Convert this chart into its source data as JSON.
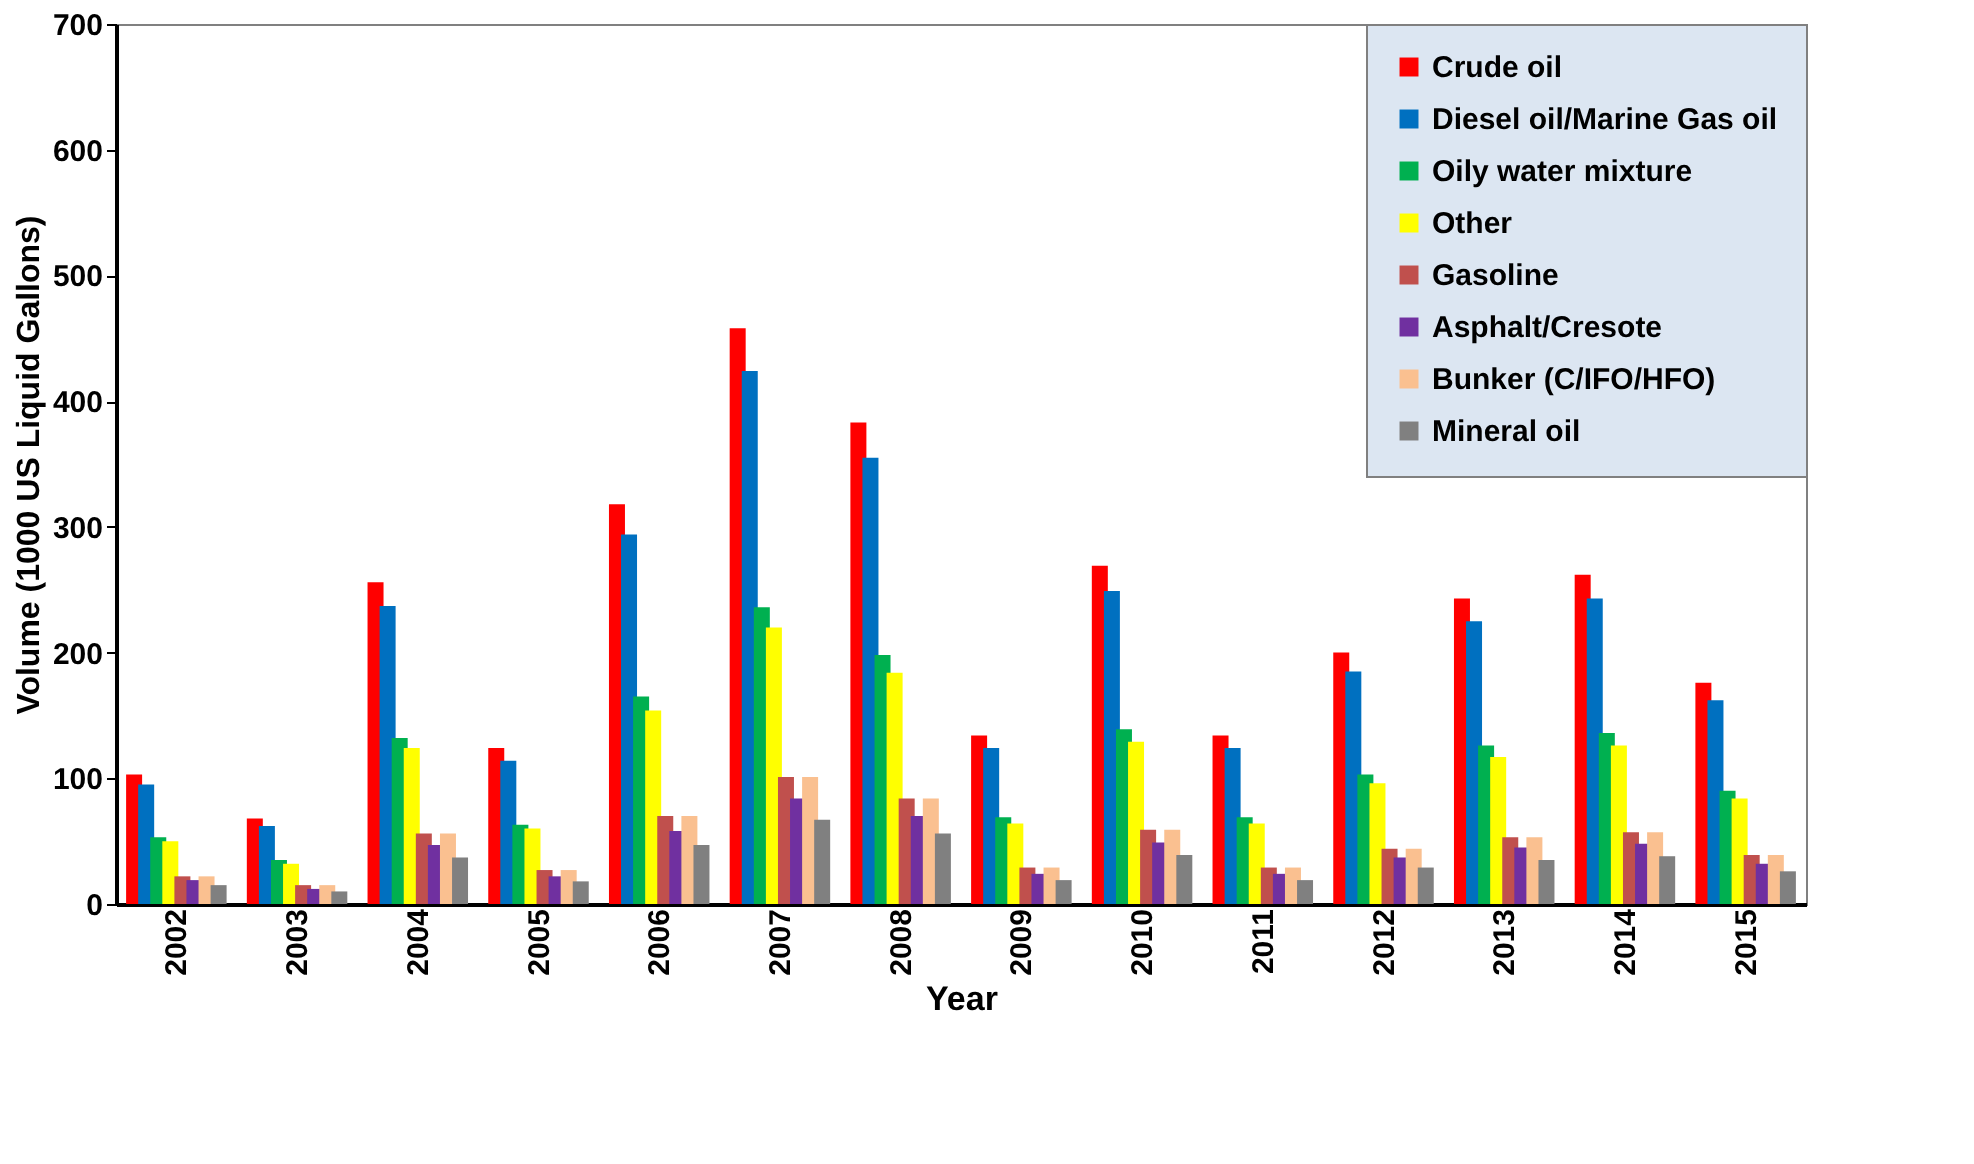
{
  "chart_data": {
    "type": "bar",
    "xlabel": "Year",
    "ylabel": "Volume (1000 US Liquid Gallons)",
    "categories": [
      "2002",
      "2003",
      "2004",
      "2005",
      "2006",
      "2007",
      "2008",
      "2009",
      "2010",
      "2011",
      "2012",
      "2013",
      "2014",
      "2015"
    ],
    "series": [
      {
        "name": "Crude oil",
        "color": "#ff0000",
        "values": [
          103,
          68,
          256,
          124,
          318,
          458,
          383,
          134,
          269,
          134,
          200,
          243,
          262,
          176
        ]
      },
      {
        "name": "Diesel oil/Marine Gas oil",
        "color": "#0070c0",
        "values": [
          95,
          62,
          237,
          114,
          294,
          424,
          355,
          124,
          249,
          124,
          185,
          225,
          243,
          162
        ]
      },
      {
        "name": "Oily water mixture",
        "color": "#00b050",
        "values": [
          53,
          35,
          132,
          63,
          165,
          236,
          198,
          69,
          139,
          69,
          103,
          126,
          136,
          90
        ]
      },
      {
        "name": "Other",
        "color": "#ffff00",
        "values": [
          50,
          32,
          124,
          60,
          154,
          220,
          184,
          64,
          129,
          64,
          96,
          117,
          126,
          84
        ]
      },
      {
        "name": "Gasoline",
        "color": "#c0504d",
        "values": [
          22,
          15,
          56,
          27,
          70,
          101,
          84,
          29,
          59,
          29,
          44,
          53,
          57,
          39
        ]
      },
      {
        "name": "Asphalt/Cresote",
        "color": "#7030a0",
        "values": [
          19,
          12,
          47,
          22,
          58,
          84,
          70,
          24,
          49,
          24,
          37,
          45,
          48,
          32
        ]
      },
      {
        "name": "Bunker (C/IFO/HFO)",
        "color": "#fac090",
        "values": [
          22,
          15,
          56,
          27,
          70,
          101,
          84,
          29,
          59,
          29,
          44,
          53,
          57,
          39
        ]
      },
      {
        "name": "Mineral oil",
        "color": "#808080",
        "values": [
          15,
          10,
          37,
          18,
          47,
          67,
          56,
          19,
          39,
          19,
          29,
          35,
          38,
          26
        ]
      }
    ],
    "ylim": [
      0,
      700
    ],
    "yticks": [
      0,
      100,
      200,
      300,
      400,
      500,
      600,
      700
    ],
    "grid": false,
    "legend": "top right"
  }
}
